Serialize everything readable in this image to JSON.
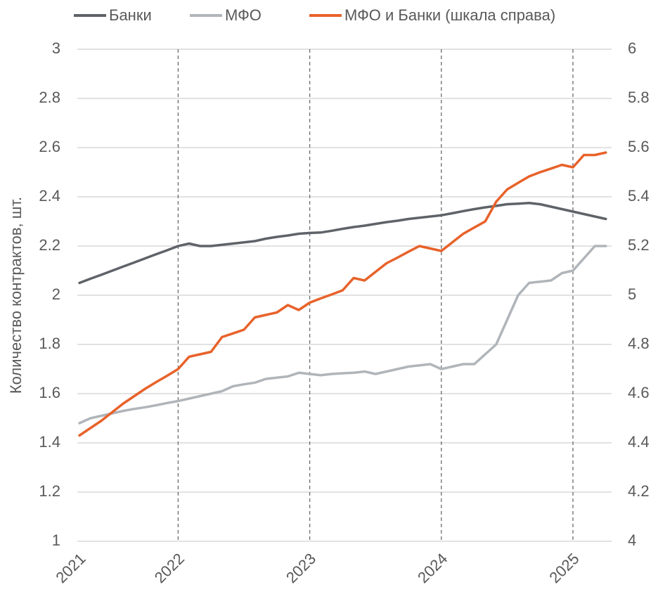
{
  "chart_data": {
    "type": "line",
    "y_label": "Количество контрактов, шт.",
    "categories": [
      "2021",
      null,
      null,
      null,
      null,
      null,
      null,
      null,
      null,
      "2022",
      null,
      null,
      null,
      null,
      null,
      null,
      null,
      null,
      null,
      null,
      null,
      "2023",
      null,
      null,
      null,
      null,
      null,
      null,
      null,
      null,
      null,
      null,
      null,
      "2024",
      null,
      null,
      null,
      null,
      null,
      null,
      null,
      null,
      null,
      null,
      null,
      "2025",
      null,
      null,
      null
    ],
    "series": [
      {
        "name": "Банки",
        "color": "#5f6369",
        "values": [
          2.05,
          2.067,
          2.083,
          2.1,
          2.117,
          2.133,
          2.15,
          2.167,
          2.183,
          2.2,
          2.21,
          2.2,
          2.2,
          2.205,
          2.21,
          2.215,
          2.22,
          2.23,
          2.237,
          2.243,
          2.25,
          2.253,
          2.255,
          2.262,
          2.27,
          2.277,
          2.283,
          2.29,
          2.297,
          2.303,
          2.31,
          2.315,
          2.32,
          2.325,
          2.333,
          2.342,
          2.35,
          2.357,
          2.363,
          2.37,
          2.372,
          2.375,
          2.37,
          2.36,
          2.35,
          2.34,
          2.33,
          2.32,
          2.31
        ]
      },
      {
        "name": "МФО",
        "color": "#b0b5ba",
        "values": [
          1.48,
          1.5,
          1.51,
          1.52,
          1.53,
          1.538,
          1.545,
          1.553,
          1.562,
          1.57,
          1.58,
          1.59,
          1.6,
          1.61,
          1.63,
          1.638,
          1.645,
          1.66,
          1.665,
          1.67,
          1.685,
          1.68,
          1.675,
          1.68,
          1.683,
          1.685,
          1.69,
          1.68,
          1.69,
          1.7,
          1.71,
          1.715,
          1.72,
          1.7,
          1.71,
          1.72,
          1.72,
          1.76,
          1.8,
          1.9,
          2.0,
          2.05,
          2.055,
          2.06,
          2.09,
          2.1,
          2.15,
          2.2,
          2.2
        ]
      },
      {
        "name": "МФО и Банки (шкала справа)",
        "color": "#e8622a",
        "axis": "y2",
        "values": [
          4.43,
          4.46,
          4.49,
          4.525,
          4.56,
          4.59,
          4.62,
          4.647,
          4.673,
          4.7,
          4.75,
          4.76,
          4.77,
          4.83,
          4.845,
          4.86,
          4.91,
          4.92,
          4.93,
          4.96,
          4.94,
          4.97,
          4.987,
          5.003,
          5.02,
          5.07,
          5.06,
          5.095,
          5.13,
          5.153,
          5.177,
          5.2,
          5.19,
          5.18,
          5.215,
          5.25,
          5.275,
          5.3,
          5.38,
          5.43,
          5.457,
          5.483,
          5.5,
          5.515,
          5.53,
          5.52,
          5.57,
          5.57,
          5.58
        ]
      }
    ],
    "ylim": [
      1,
      3
    ],
    "yticks": [
      1,
      1.2,
      1.4,
      1.6,
      1.8,
      2,
      2.2,
      2.4,
      2.6,
      2.8,
      3
    ],
    "y2lim": [
      4,
      6
    ],
    "y2ticks": [
      4,
      4.2,
      4.4,
      4.6,
      4.8,
      5,
      5.2,
      5.4,
      5.6,
      5.8,
      6
    ],
    "grid": true,
    "legend": "top"
  }
}
